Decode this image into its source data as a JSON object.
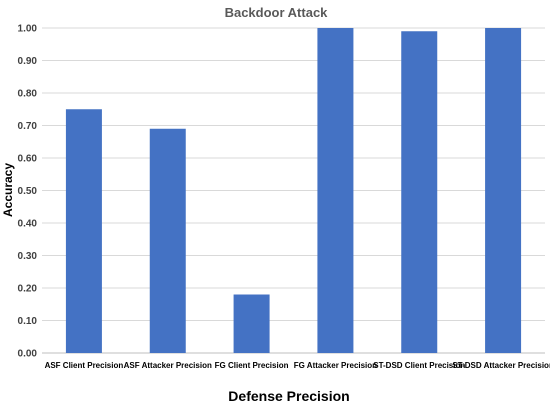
{
  "chart_data": {
    "type": "bar",
    "title": "Backdoor Attack",
    "xlabel": "Defense Precision",
    "ylabel": "Accuracy",
    "categories": [
      "ASF Client Precision",
      "ASF Attacker Precision",
      "FG Client Precision",
      "FG Attacker Precision",
      "ST-DSD Client Precision",
      "ST-DSD Attacker Precision"
    ],
    "values": [
      0.75,
      0.69,
      0.18,
      1.0,
      0.99,
      1.0
    ],
    "ylim": [
      0,
      1.0
    ],
    "yticks": [
      "0.00",
      "0.10",
      "0.20",
      "0.30",
      "0.40",
      "0.50",
      "0.60",
      "0.70",
      "0.80",
      "0.90",
      "1.00"
    ],
    "grid": true,
    "legend": "none",
    "bar_color": "#4472C4",
    "grid_color": "#D9D9D9"
  }
}
